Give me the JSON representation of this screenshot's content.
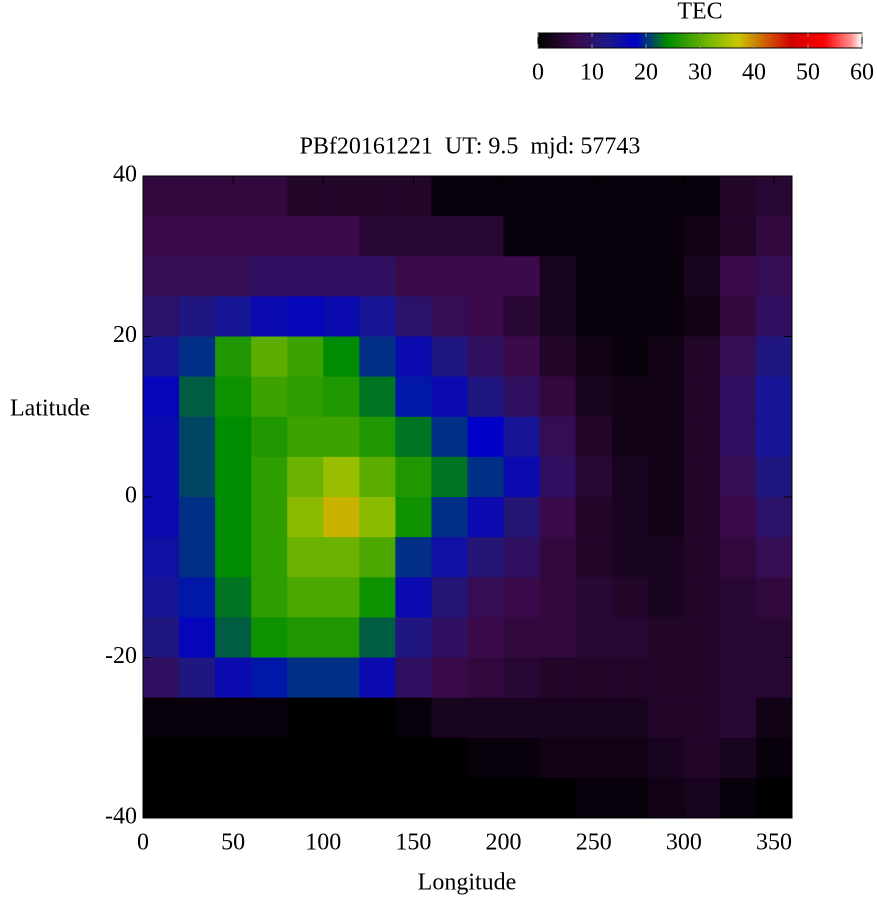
{
  "chart_data": {
    "type": "heatmap",
    "title": "PBf20161221  UT: 9.5  mjd: 57743",
    "x_label": "Longitude",
    "y_label": "Latitude",
    "colorbar_label": "TEC",
    "xlim": [
      0,
      360
    ],
    "xticks": [
      0,
      50,
      100,
      150,
      200,
      250,
      300,
      350
    ],
    "ylim": [
      -40,
      40
    ],
    "yticks": [
      -40,
      -20,
      0,
      20,
      40
    ],
    "clim": [
      0,
      60
    ],
    "cticks": [
      0,
      10,
      20,
      30,
      40,
      50,
      60
    ],
    "colormap": [
      {
        "value": 0,
        "color": "#000000"
      },
      {
        "value": 7,
        "color": "#3a0a4a"
      },
      {
        "value": 13,
        "color": "#1a1a8a"
      },
      {
        "value": 18,
        "color": "#0000c8"
      },
      {
        "value": 24,
        "color": "#008c00"
      },
      {
        "value": 32,
        "color": "#7ab800"
      },
      {
        "value": 37,
        "color": "#c8c800"
      },
      {
        "value": 42,
        "color": "#d06000"
      },
      {
        "value": 47,
        "color": "#d00000"
      },
      {
        "value": 53,
        "color": "#ff0000"
      },
      {
        "value": 58,
        "color": "#ff9090"
      },
      {
        "value": 60,
        "color": "#ffffff"
      }
    ],
    "x": [
      10,
      30,
      50,
      70,
      90,
      110,
      130,
      150,
      170,
      190,
      210,
      230,
      250,
      270,
      290,
      310,
      330,
      350
    ],
    "y": [
      37.5,
      32.5,
      27.5,
      22.5,
      17.5,
      12.5,
      7.5,
      2.5,
      -2.5,
      -7.5,
      -12.5,
      -17.5,
      -22.5,
      -27.5,
      -32.5,
      -37.5
    ],
    "z": [
      [
        6,
        6,
        6,
        6,
        4,
        4,
        4,
        4,
        1,
        1,
        1,
        1,
        1,
        1,
        1,
        1,
        4,
        5
      ],
      [
        7,
        7,
        7,
        7,
        7,
        7,
        5,
        5,
        5,
        5,
        1,
        1,
        1,
        1,
        1,
        2,
        4,
        6
      ],
      [
        8,
        8,
        8,
        9,
        9,
        9,
        9,
        7,
        7,
        7,
        7,
        3,
        1,
        1,
        1,
        3,
        7,
        8
      ],
      [
        10,
        12,
        14,
        16,
        17,
        16,
        14,
        10,
        8,
        7,
        5,
        3,
        1,
        1,
        1,
        2,
        6,
        9
      ],
      [
        14,
        20,
        26,
        30,
        28,
        24,
        20,
        16,
        12,
        9,
        7,
        4,
        2,
        1,
        2,
        4,
        8,
        12
      ],
      [
        17,
        22,
        25,
        28,
        27,
        26,
        23,
        19,
        16,
        12,
        9,
        6,
        3,
        2,
        2,
        4,
        9,
        14
      ],
      [
        16,
        21,
        24,
        26,
        28,
        28,
        26,
        23,
        20,
        18,
        14,
        8,
        4,
        2,
        2,
        4,
        9,
        14
      ],
      [
        16,
        21,
        24,
        27,
        31,
        34,
        30,
        26,
        23,
        20,
        16,
        9,
        5,
        3,
        2,
        4,
        8,
        12
      ],
      [
        16,
        20,
        24,
        27,
        33,
        38,
        33,
        25,
        20,
        16,
        11,
        7,
        4,
        3,
        2,
        4,
        7,
        10
      ],
      [
        15,
        20,
        24,
        27,
        31,
        31,
        29,
        20,
        15,
        11,
        9,
        6,
        4,
        3,
        3,
        4,
        6,
        8
      ],
      [
        14,
        19,
        23,
        27,
        29,
        29,
        25,
        16,
        11,
        8,
        7,
        6,
        5,
        4,
        3,
        4,
        5,
        6
      ],
      [
        12,
        17,
        22,
        25,
        26,
        26,
        22,
        12,
        9,
        7,
        6,
        6,
        5,
        5,
        4,
        4,
        5,
        5
      ],
      [
        9,
        12,
        16,
        19,
        20,
        20,
        16,
        9,
        7,
        6,
        5,
        4,
        4,
        4,
        4,
        4,
        5,
        5
      ],
      [
        1,
        1,
        1,
        1,
        0,
        0,
        0,
        1,
        3,
        3,
        3,
        3,
        3,
        3,
        4,
        4,
        5,
        2
      ],
      [
        0,
        0,
        0,
        0,
        0,
        0,
        0,
        0,
        0,
        1,
        1,
        2,
        2,
        2,
        3,
        4,
        3,
        1
      ],
      [
        0,
        0,
        0,
        0,
        0,
        0,
        0,
        0,
        0,
        0,
        0,
        0,
        1,
        1,
        2,
        3,
        1,
        0
      ]
    ]
  }
}
